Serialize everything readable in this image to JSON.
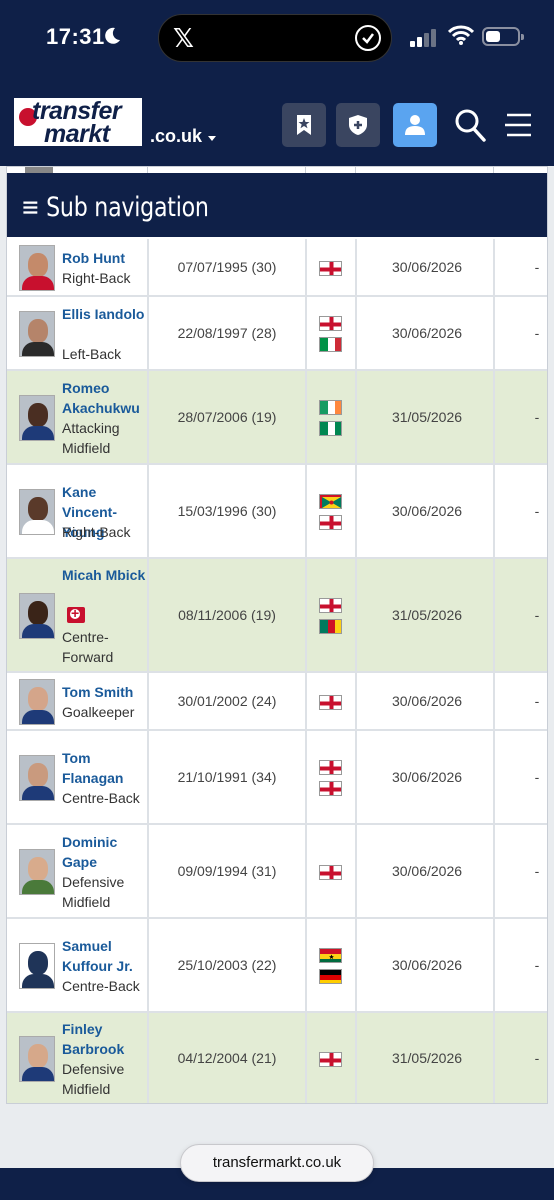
{
  "status_bar": {
    "time": "17:31"
  },
  "header": {
    "logo_line1": "transfer",
    "logo_line2": "markt",
    "domain": ".co.uk"
  },
  "subnav": {
    "label": "≡ Sub navigation"
  },
  "players": [
    {
      "name": "Rob Hunt",
      "position": "Right-Back",
      "dob": "07/07/1995 (30)",
      "contract": "30/06/2026",
      "extra": "-",
      "flags": [
        "england"
      ],
      "highlight": false,
      "injury": false,
      "skin": "#c48a6a",
      "shirt": "#c8102e"
    },
    {
      "name": "Ellis Iandolo",
      "position": "Left-Back",
      "dob": "22/08/1997 (28)",
      "contract": "30/06/2026",
      "extra": "-",
      "flags": [
        "england",
        "italy"
      ],
      "highlight": false,
      "injury": false,
      "skin": "#b5846a",
      "shirt": "#2a2a2a"
    },
    {
      "name": "Romeo Akachukwu",
      "position": "Attacking Midfield",
      "dob": "28/07/2006 (19)",
      "contract": "31/05/2026",
      "extra": "-",
      "flags": [
        "ireland",
        "nigeria"
      ],
      "highlight": true,
      "injury": false,
      "skin": "#4a2e22",
      "shirt": "#1e3a78"
    },
    {
      "name": "Kane Vincent-Young",
      "position": "Right-Back",
      "dob": "15/03/1996 (30)",
      "contract": "30/06/2026",
      "extra": "-",
      "flags": [
        "grenada",
        "england"
      ],
      "highlight": false,
      "injury": false,
      "skin": "#5a3a2a",
      "shirt": "#ffffff"
    },
    {
      "name": "Micah Mbick",
      "position": "Centre-Forward",
      "dob": "08/11/2006 (19)",
      "contract": "31/05/2026",
      "extra": "-",
      "flags": [
        "england",
        "cameroon"
      ],
      "highlight": true,
      "injury": true,
      "skin": "#3a2418",
      "shirt": "#1e3a78"
    },
    {
      "name": "Tom Smith",
      "position": "Goalkeeper",
      "dob": "30/01/2002 (24)",
      "contract": "30/06/2026",
      "extra": "-",
      "flags": [
        "england"
      ],
      "highlight": false,
      "injury": false,
      "skin": "#d4a58a",
      "shirt": "#1e3a78"
    },
    {
      "name": "Tom Flanagan",
      "position": "Centre-Back",
      "dob": "21/10/1991 (34)",
      "contract": "30/06/2026",
      "extra": "-",
      "flags": [
        "england",
        "england"
      ],
      "highlight": false,
      "injury": false,
      "skin": "#c99a7e",
      "shirt": "#1e3a78"
    },
    {
      "name": "Dominic Gape",
      "position": "Defensive Midfield",
      "dob": "09/09/1994 (31)",
      "contract": "30/06/2026",
      "extra": "-",
      "flags": [
        "england"
      ],
      "highlight": false,
      "injury": false,
      "skin": "#d8ab8c",
      "shirt": "#4a7a3a"
    },
    {
      "name": "Samuel Kuffour Jr.",
      "position": "Centre-Back",
      "dob": "25/10/2003 (22)",
      "contract": "30/06/2026",
      "extra": "-",
      "flags": [
        "ghana",
        "germany"
      ],
      "highlight": false,
      "injury": false,
      "silhouette": true,
      "skin": "#1f3458",
      "shirt": "#1f3458"
    },
    {
      "name": "Finley Barbrook",
      "position": "Defensive Midfield",
      "dob": "04/12/2004 (21)",
      "contract": "31/05/2026",
      "extra": "-",
      "flags": [
        "england"
      ],
      "highlight": true,
      "injury": false,
      "skin": "#d6a88a",
      "shirt": "#1e3a78"
    }
  ],
  "browser": {
    "url": "transfermarkt.co.uk"
  }
}
